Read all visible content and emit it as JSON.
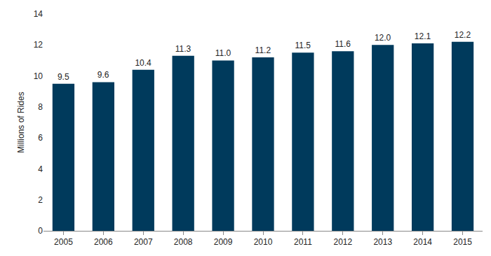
{
  "chart_data": {
    "type": "bar",
    "y_label": "Millions of Rides",
    "categories": [
      "2005",
      "2006",
      "2007",
      "2008",
      "2009",
      "2010",
      "2011",
      "2012",
      "2013",
      "2014",
      "2015"
    ],
    "values": [
      9.5,
      9.6,
      10.4,
      11.3,
      11.0,
      11.2,
      11.5,
      11.6,
      12.0,
      12.1,
      12.2
    ],
    "value_labels": [
      "9.5",
      "9.6",
      "10.4",
      "11.3",
      "11.0",
      "11.2",
      "11.5",
      "11.6",
      "12.0",
      "12.1",
      "12.2"
    ],
    "color": "#003a5c",
    "ylim": [
      0,
      14
    ],
    "yticks": [
      0,
      2,
      4,
      6,
      8,
      10,
      12,
      14
    ],
    "grid": false,
    "data_labels": true
  }
}
